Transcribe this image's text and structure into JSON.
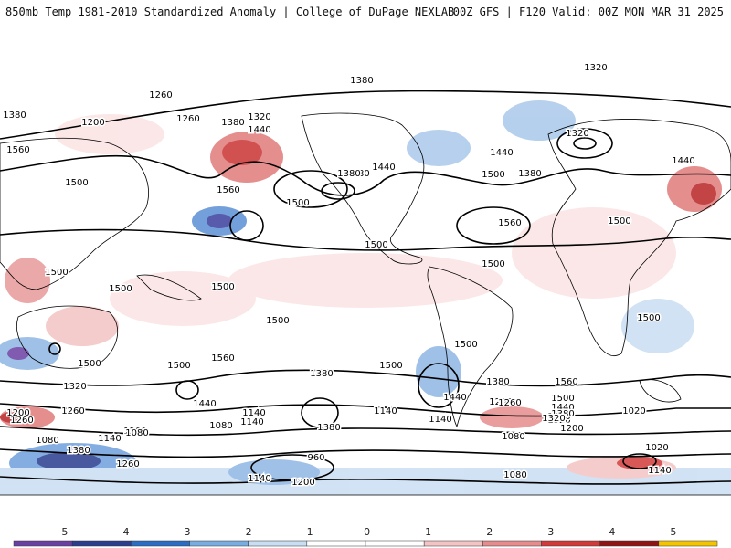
{
  "header": {
    "left_title": "850mb Temp 1981-2010 Standardized Anomaly | College of DuPage NEXLAB",
    "right_title": "00Z GFS | F120 Valid: 00Z MON MAR 31 2025"
  },
  "colorbar": {
    "labels": [
      "−5",
      "−4",
      "−3",
      "−2",
      "−1",
      "0",
      "1",
      "2",
      "3",
      "4",
      "5"
    ],
    "colors": [
      "#6a3fa3",
      "#2a3d8f",
      "#2b6cc4",
      "#79ace0",
      "#c9def3",
      "#ffffff",
      "#ffffff",
      "#f4c4c4",
      "#e68c8c",
      "#d23a3a",
      "#8f1414",
      "#f5c400"
    ]
  },
  "contour_labels": [
    {
      "text": "1320"
    },
    {
      "text": "1380"
    },
    {
      "text": "1260"
    },
    {
      "text": "1200"
    },
    {
      "text": "1380"
    },
    {
      "text": "1260"
    },
    {
      "text": "1380"
    },
    {
      "text": "1320"
    },
    {
      "text": "1440"
    },
    {
      "text": "1560"
    },
    {
      "text": "1500"
    },
    {
      "text": "1560"
    },
    {
      "text": "1500"
    },
    {
      "text": "1440"
    },
    {
      "text": "1380"
    },
    {
      "text": "1500"
    },
    {
      "text": "1440"
    },
    {
      "text": "1380"
    },
    {
      "text": "1380"
    },
    {
      "text": "1320"
    },
    {
      "text": "1440"
    },
    {
      "text": "1560"
    },
    {
      "text": "1500"
    },
    {
      "text": "1500"
    },
    {
      "text": "1500"
    },
    {
      "text": "1500"
    },
    {
      "text": "1500"
    },
    {
      "text": "1500"
    },
    {
      "text": "1500"
    },
    {
      "text": "1500"
    },
    {
      "text": "1500"
    },
    {
      "text": "1560"
    },
    {
      "text": "1500"
    },
    {
      "text": "1500"
    },
    {
      "text": "1380"
    },
    {
      "text": "1500"
    },
    {
      "text": "1320"
    },
    {
      "text": "1440"
    },
    {
      "text": "1380"
    },
    {
      "text": "1260"
    },
    {
      "text": "1260"
    },
    {
      "text": "1140"
    },
    {
      "text": "1080"
    },
    {
      "text": "1200"
    },
    {
      "text": "1140"
    },
    {
      "text": "1380"
    },
    {
      "text": "1260"
    },
    {
      "text": "1320"
    },
    {
      "text": "1320"
    },
    {
      "text": "1200"
    },
    {
      "text": "1020"
    },
    {
      "text": "960"
    },
    {
      "text": "1140"
    },
    {
      "text": "1080"
    },
    {
      "text": "1200"
    },
    {
      "text": "1080"
    },
    {
      "text": "1380"
    },
    {
      "text": "1440"
    },
    {
      "text": "1260"
    },
    {
      "text": "1560"
    },
    {
      "text": "1500"
    },
    {
      "text": "1440"
    },
    {
      "text": "1380"
    },
    {
      "text": "1320"
    },
    {
      "text": "1200"
    },
    {
      "text": "1140"
    },
    {
      "text": "1020"
    },
    {
      "text": "1080"
    },
    {
      "text": "1140"
    },
    {
      "text": "1080"
    },
    {
      "text": "1200"
    },
    {
      "text": "1140"
    },
    {
      "text": "1260"
    },
    {
      "text": "1140"
    }
  ]
}
